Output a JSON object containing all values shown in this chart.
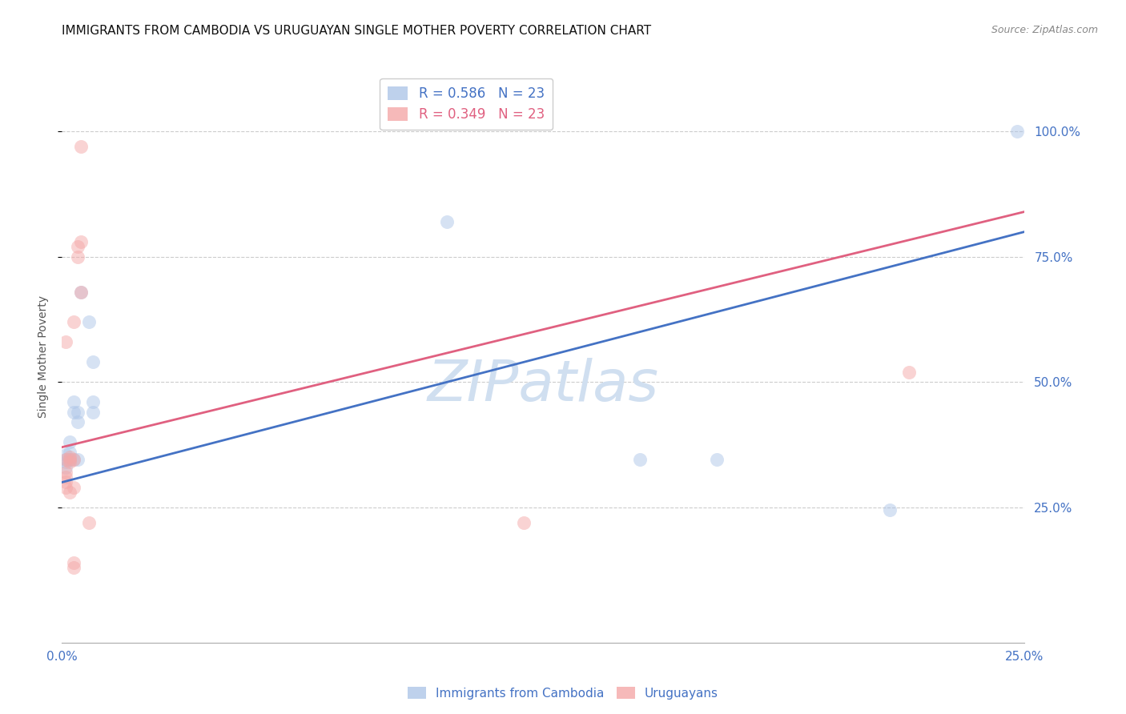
{
  "title": "IMMIGRANTS FROM CAMBODIA VS URUGUAYAN SINGLE MOTHER POVERTY CORRELATION CHART",
  "source": "Source: ZipAtlas.com",
  "ylabel": "Single Mother Poverty",
  "ytick_labels": [
    "25.0%",
    "50.0%",
    "75.0%",
    "100.0%"
  ],
  "ytick_values": [
    0.25,
    0.5,
    0.75,
    1.0
  ],
  "xlim": [
    0.0,
    0.25
  ],
  "ylim": [
    -0.02,
    1.12
  ],
  "legend_entries": [
    {
      "label": "R = 0.586   N = 23",
      "color": "#aec6e8"
    },
    {
      "label": "R = 0.349   N = 23",
      "color": "#f4a8a8"
    }
  ],
  "watermark": "ZIPatlas",
  "blue_scatter": [
    [
      0.001,
      0.34
    ],
    [
      0.001,
      0.345
    ],
    [
      0.001,
      0.33
    ],
    [
      0.001,
      0.355
    ],
    [
      0.002,
      0.345
    ],
    [
      0.002,
      0.36
    ],
    [
      0.002,
      0.38
    ],
    [
      0.003,
      0.345
    ],
    [
      0.003,
      0.44
    ],
    [
      0.003,
      0.46
    ],
    [
      0.004,
      0.345
    ],
    [
      0.004,
      0.42
    ],
    [
      0.004,
      0.44
    ],
    [
      0.005,
      0.68
    ],
    [
      0.007,
      0.62
    ],
    [
      0.008,
      0.54
    ],
    [
      0.008,
      0.46
    ],
    [
      0.008,
      0.44
    ],
    [
      0.1,
      0.82
    ],
    [
      0.15,
      0.345
    ],
    [
      0.17,
      0.345
    ],
    [
      0.215,
      0.245
    ],
    [
      0.248,
      1.0
    ]
  ],
  "pink_scatter": [
    [
      0.001,
      0.345
    ],
    [
      0.001,
      0.31
    ],
    [
      0.001,
      0.3
    ],
    [
      0.001,
      0.29
    ],
    [
      0.001,
      0.32
    ],
    [
      0.001,
      0.58
    ],
    [
      0.002,
      0.345
    ],
    [
      0.002,
      0.35
    ],
    [
      0.002,
      0.28
    ],
    [
      0.002,
      0.34
    ],
    [
      0.003,
      0.62
    ],
    [
      0.003,
      0.345
    ],
    [
      0.003,
      0.29
    ],
    [
      0.003,
      0.13
    ],
    [
      0.003,
      0.14
    ],
    [
      0.004,
      0.75
    ],
    [
      0.004,
      0.77
    ],
    [
      0.005,
      0.68
    ],
    [
      0.005,
      0.78
    ],
    [
      0.005,
      0.97
    ],
    [
      0.007,
      0.22
    ],
    [
      0.12,
      0.22
    ],
    [
      0.22,
      0.52
    ]
  ],
  "blue_line_x": [
    0.0,
    0.25
  ],
  "blue_line_y": [
    0.3,
    0.8
  ],
  "pink_line_x": [
    0.0,
    0.25
  ],
  "pink_line_y": [
    0.37,
    0.84
  ],
  "scatter_size": 150,
  "scatter_alpha": 0.5,
  "blue_color": "#aec6e8",
  "pink_color": "#f4a8a8",
  "blue_line_color": "#4472c4",
  "pink_line_color": "#e06080",
  "grid_color": "#cccccc",
  "background_color": "#ffffff",
  "title_fontsize": 11,
  "axis_label_fontsize": 10,
  "tick_fontsize": 11,
  "legend_fontsize": 12,
  "watermark_fontsize": 52,
  "watermark_color": "#d0dff0",
  "source_fontsize": 9,
  "bottom_legend_labels": [
    "Immigrants from Cambodia",
    "Uruguayans"
  ]
}
